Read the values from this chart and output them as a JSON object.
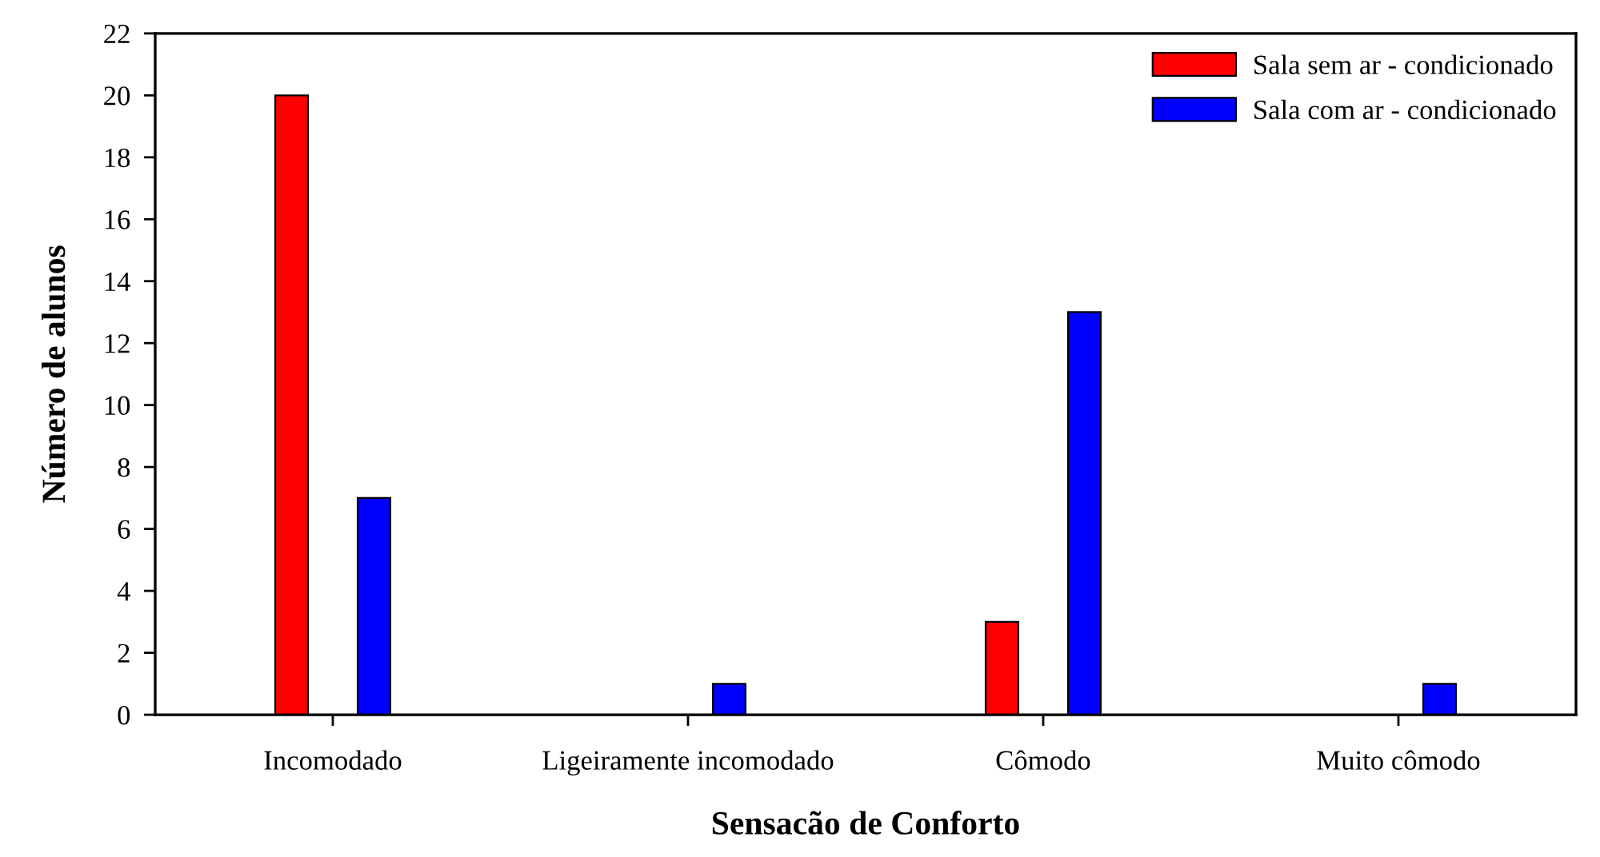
{
  "chart_data": {
    "type": "bar",
    "xlabel": "Sensacão de Conforto",
    "ylabel": "Número de alunos",
    "categories": [
      "Incomodado",
      "Ligeiramente incomodado",
      "Cômodo",
      "Muito cômodo"
    ],
    "series": [
      {
        "name": "Sala sem ar - condicionado",
        "color": "#ff0000",
        "values": [
          20,
          null,
          3,
          null
        ]
      },
      {
        "name": "Sala com ar - condicionado",
        "color": "#0000ff",
        "values": [
          7,
          1,
          13,
          1
        ]
      }
    ],
    "ylim": [
      0,
      22
    ],
    "yticks": [
      0,
      2,
      4,
      6,
      8,
      10,
      12,
      14,
      16,
      18,
      20,
      22
    ],
    "grid": false,
    "legend": "top right"
  }
}
